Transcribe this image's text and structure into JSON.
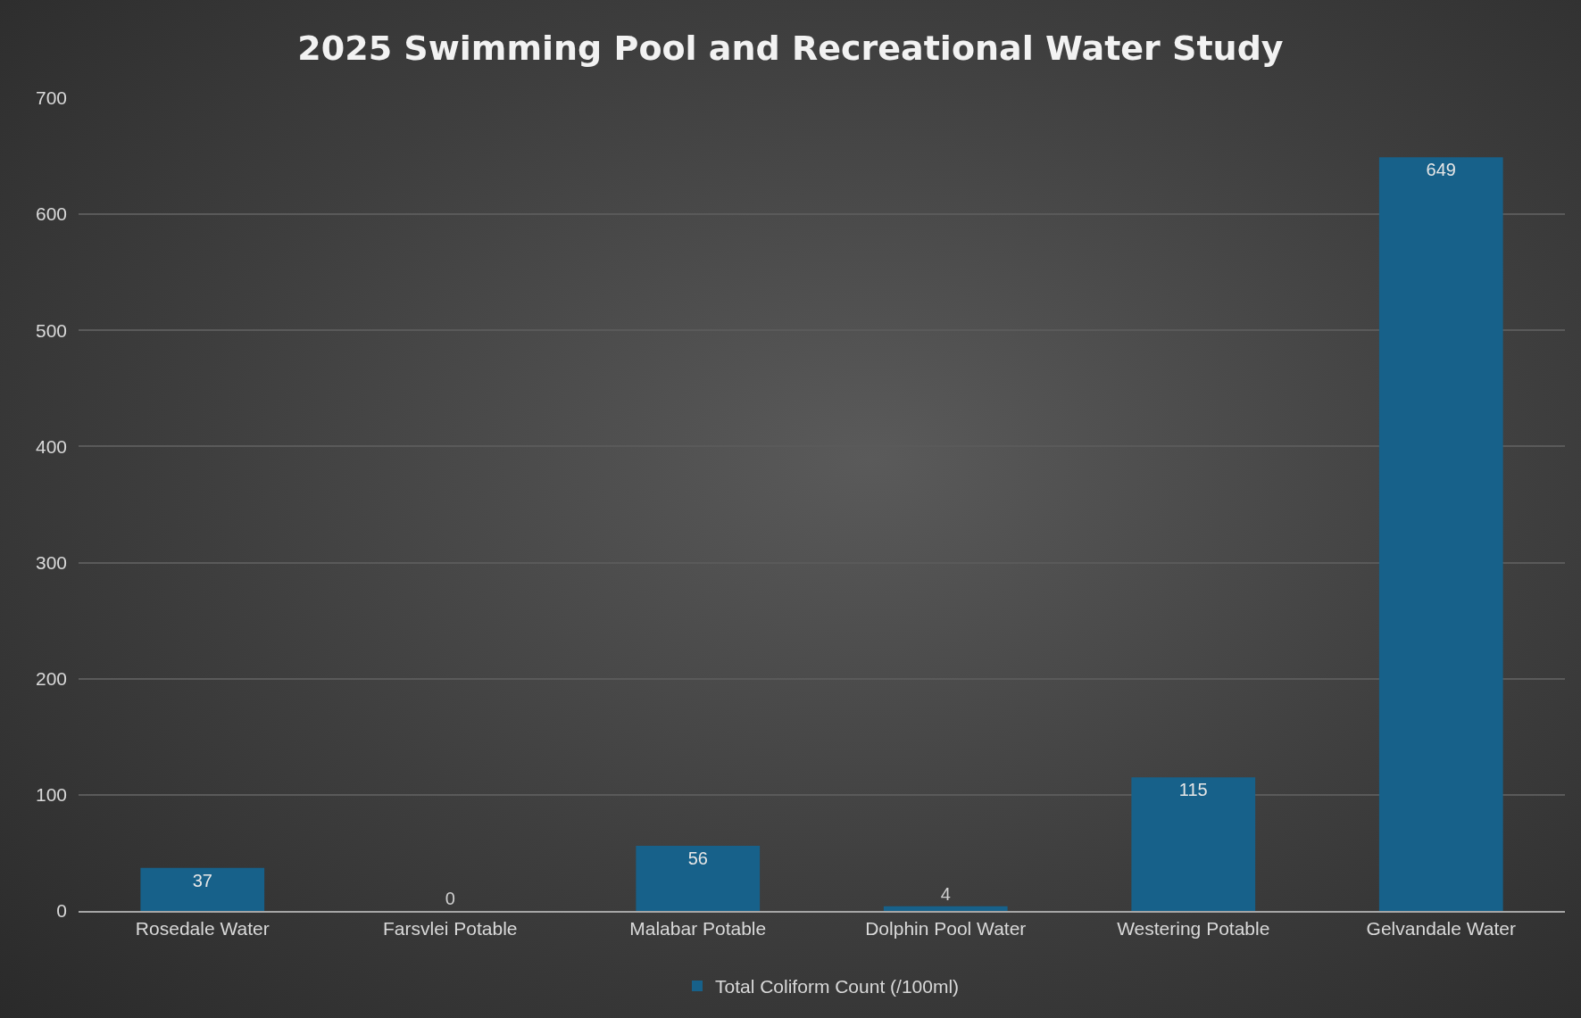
{
  "chart_data": {
    "type": "bar",
    "title": "2025 Swimming Pool and Recreational Water Study",
    "categories": [
      "Rosedale Water",
      "Farsvlei Potable",
      "Malabar Potable",
      "Dolphin Pool Water",
      "Westering Potable",
      "Gelvandale Water"
    ],
    "series": [
      {
        "name": "Total Coliform Count (/100ml)",
        "color": "#17618a",
        "values": [
          37,
          0,
          56,
          4,
          115,
          649
        ]
      }
    ],
    "ylim": [
      0,
      700
    ],
    "yticks": [
      0,
      100,
      200,
      300,
      400,
      500,
      600,
      700
    ],
    "grid": "y",
    "legend": "bottom",
    "data_labels": true
  }
}
